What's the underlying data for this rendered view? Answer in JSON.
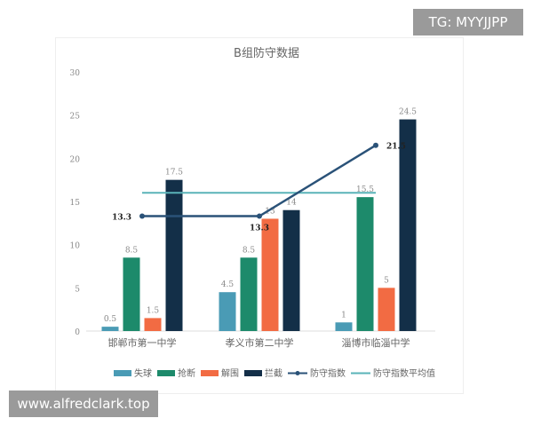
{
  "overlay": {
    "tg_label": "TG: MYYJJPP",
    "site_label": "www.alfredclark.top"
  },
  "chart_data": {
    "type": "bar",
    "title": "B组防守数据",
    "categories": [
      "邯郸市第一中学",
      "孝义市第二中学",
      "淄博市临淄中学"
    ],
    "ylim": [
      0,
      30
    ],
    "yticks": [
      0,
      5,
      10,
      15,
      20,
      25,
      30
    ],
    "series": [
      {
        "name": "失球",
        "kind": "bar",
        "color": "#4a9bb5",
        "values": [
          0.5,
          4.5,
          1
        ]
      },
      {
        "name": "抢断",
        "kind": "bar",
        "color": "#1d8a6b",
        "values": [
          8.5,
          8.5,
          15.5
        ]
      },
      {
        "name": "解围",
        "kind": "bar",
        "color": "#f26b43",
        "values": [
          1.5,
          13,
          5
        ]
      },
      {
        "name": "拦截",
        "kind": "bar",
        "color": "#132f48",
        "values": [
          17.5,
          14,
          24.5
        ]
      },
      {
        "name": "防守指数",
        "kind": "line",
        "color": "#2a5278",
        "values": [
          13.3,
          13.3,
          21.5
        ]
      },
      {
        "name": "防守指数平均值",
        "kind": "line",
        "color": "#5ab3b8",
        "values": [
          16,
          16,
          16
        ]
      }
    ],
    "legend": "bottom",
    "grid": false
  }
}
